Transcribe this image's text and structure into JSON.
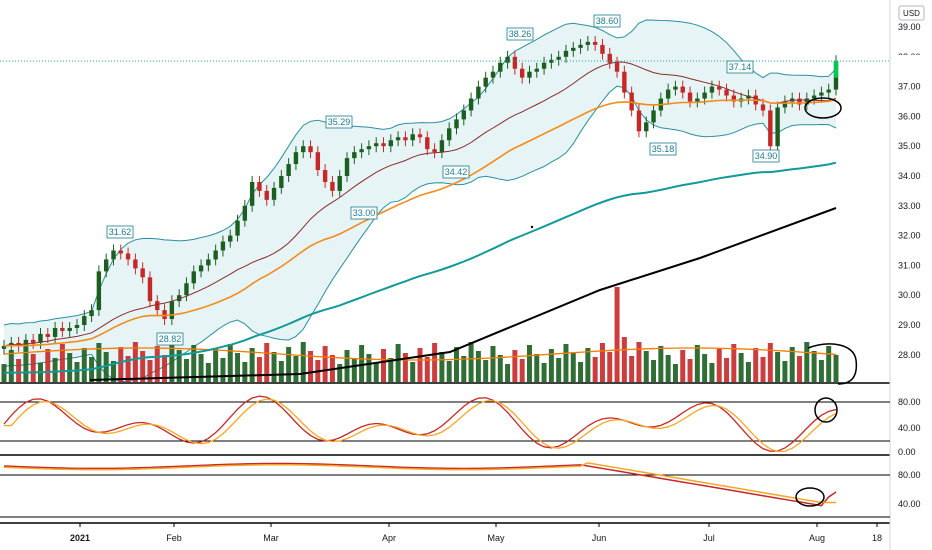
{
  "chart_data": {
    "type": "candlestick",
    "currency": "USD",
    "price_axis": {
      "ticks": [
        "39.00",
        "38.00",
        "37.00",
        "36.00",
        "35.00",
        "34.00",
        "33.00",
        "32.00",
        "31.00",
        "30.00",
        "29.00",
        "28.00"
      ],
      "range": [
        27.0,
        39.6
      ]
    },
    "stoch_axis": {
      "ticks": [
        "80.00",
        "40.00",
        "0.00"
      ]
    },
    "rsi_axis": {
      "ticks": [
        "80.00",
        "40.00"
      ]
    },
    "x_labels": [
      "2021",
      "Feb",
      "Mar",
      "Apr",
      "May",
      "Jun",
      "Jul",
      "Aug",
      "18"
    ],
    "annotations": [
      "31.62",
      "28.82",
      "35.29",
      "33.00",
      "34.42",
      "38.26",
      "38.60",
      "35.18",
      "37.14",
      "34.90"
    ],
    "last_price": 37.85,
    "closes": [
      28.3,
      28.4,
      28.3,
      28.5,
      28.4,
      28.7,
      28.6,
      28.9,
      28.8,
      28.9,
      29.0,
      29.3,
      29.5,
      30.8,
      31.2,
      31.5,
      31.4,
      31.2,
      30.9,
      30.6,
      29.8,
      29.5,
      29.2,
      29.8,
      30.0,
      30.4,
      30.8,
      31.0,
      31.2,
      31.5,
      31.8,
      32.0,
      32.5,
      33.0,
      33.8,
      33.5,
      33.2,
      33.6,
      34.0,
      34.4,
      34.8,
      35.0,
      34.8,
      34.2,
      33.8,
      33.5,
      34.0,
      34.6,
      34.8,
      34.9,
      35.0,
      35.1,
      35.0,
      35.2,
      35.3,
      35.2,
      35.4,
      35.3,
      34.9,
      34.8,
      35.2,
      35.6,
      35.9,
      36.2,
      36.6,
      37.0,
      37.3,
      37.5,
      37.8,
      38.0,
      37.6,
      37.3,
      37.5,
      37.6,
      37.8,
      37.9,
      38.0,
      38.2,
      38.3,
      38.4,
      38.5,
      38.4,
      38.1,
      37.8,
      37.5,
      36.8,
      36.2,
      35.5,
      35.8,
      36.2,
      36.6,
      36.9,
      37.0,
      36.8,
      36.5,
      36.6,
      36.8,
      37.0,
      36.9,
      36.7,
      36.5,
      36.6,
      36.7,
      36.4,
      36.2,
      35.0,
      36.3,
      36.5,
      36.6,
      36.4,
      36.6,
      36.7,
      36.8,
      36.9,
      37.85
    ],
    "volume_desc": "daily volume bars, spike near early June",
    "overlays": [
      "Bollinger Bands (20)",
      "EMA short",
      "EMA medium",
      "SMA long (teal)",
      "SMA 200 (black)"
    ],
    "indicators": [
      "Stochastic (K,D)",
      "RSI / slow oscillator"
    ],
    "grid": false
  }
}
